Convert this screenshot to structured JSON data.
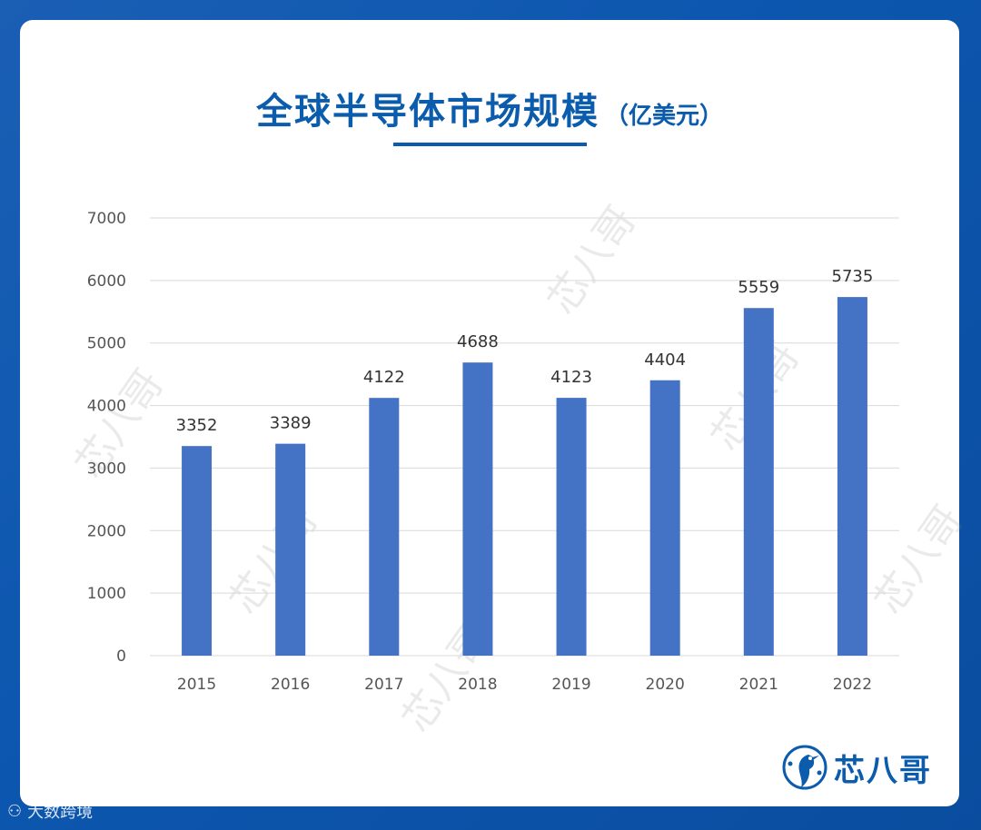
{
  "title": "全球半导体市场规模",
  "title_unit": "（亿美元）",
  "logo_text": "芯八哥",
  "footer_text": "大数跨境",
  "watermark_text": "芯八哥",
  "colors": {
    "bar": "#4472c4",
    "title": "#0b5cad",
    "background": "#0d57b0",
    "grid": "#d9d9d9"
  },
  "chart_data": {
    "type": "bar",
    "title": "全球半导体市场规模（亿美元）",
    "xlabel": "",
    "ylabel": "",
    "categories": [
      "2015",
      "2016",
      "2017",
      "2018",
      "2019",
      "2020",
      "2021",
      "2022"
    ],
    "values": [
      3352,
      3389,
      4122,
      4688,
      4123,
      4404,
      5559,
      5735
    ],
    "ylim": [
      0,
      7000
    ],
    "yticks": [
      0,
      1000,
      2000,
      3000,
      4000,
      5000,
      6000,
      7000
    ],
    "grid": true,
    "legend": "none"
  }
}
